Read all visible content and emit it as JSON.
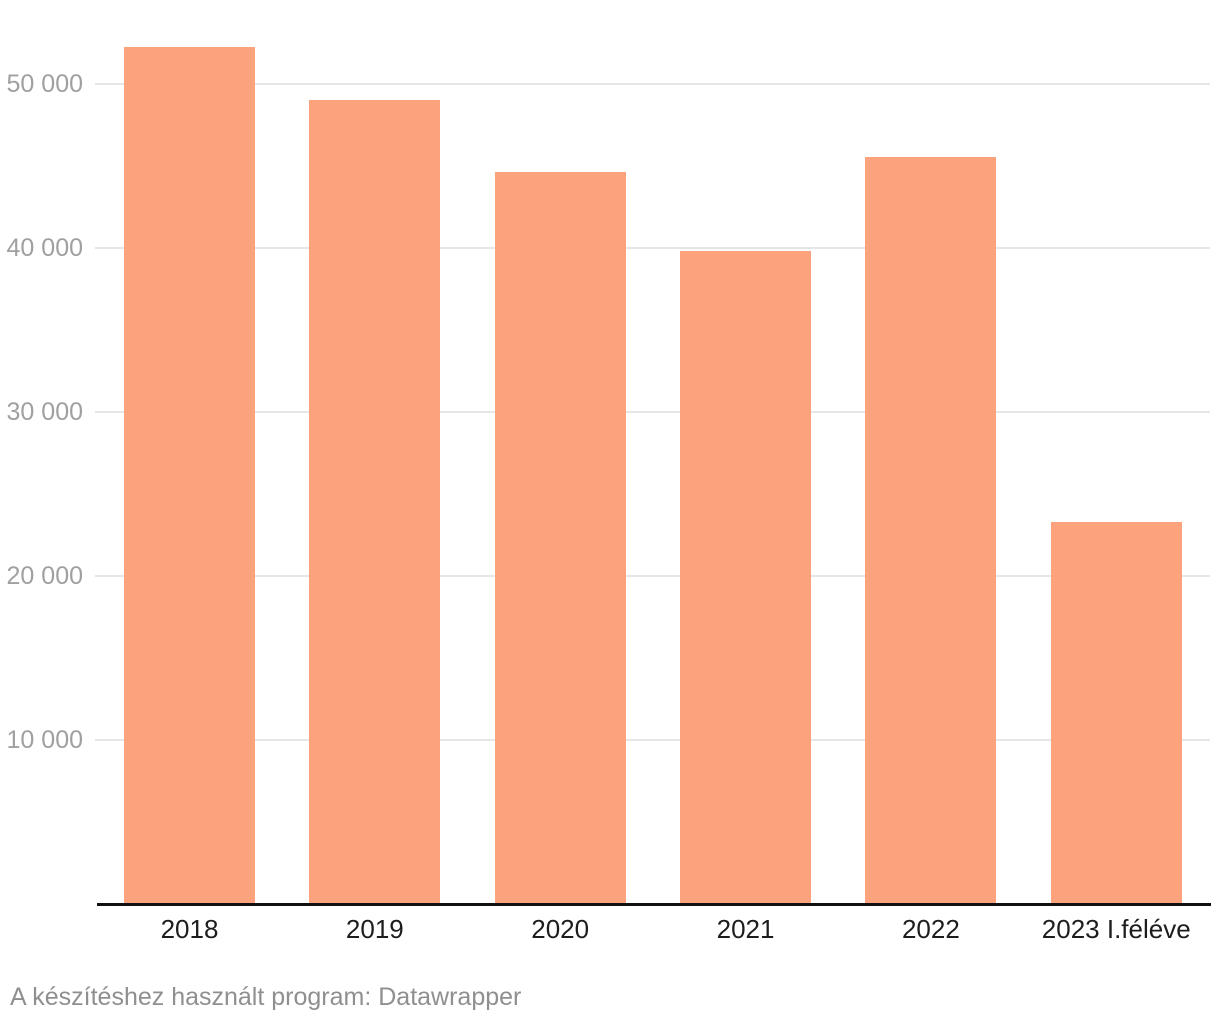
{
  "chart_data": {
    "type": "bar",
    "categories": [
      "2018",
      "2019",
      "2020",
      "2021",
      "2022",
      "2023 I.féléve"
    ],
    "values": [
      52200,
      49000,
      44600,
      39800,
      45500,
      23300
    ],
    "title": "",
    "xlabel": "",
    "ylabel": "",
    "ylim": [
      0,
      55000
    ],
    "yticks": [
      {
        "value": 10000,
        "label": "10 000"
      },
      {
        "value": 20000,
        "label": "20 000"
      },
      {
        "value": 30000,
        "label": "30 000"
      },
      {
        "value": 40000,
        "label": "40 000"
      },
      {
        "value": 50000,
        "label": "50 000"
      }
    ],
    "grid": true,
    "legend": "none"
  },
  "colors": {
    "bar": "#fca27c",
    "grid": "#e6e6e6",
    "axis_line": "#111111",
    "y_tick_label": "#a0a0a0",
    "x_tick_label": "#1d1d1d",
    "footer_text": "#8f8f8f",
    "background": "#ffffff"
  },
  "footer": {
    "credit": "A készítéshez használt program: Datawrapper"
  }
}
